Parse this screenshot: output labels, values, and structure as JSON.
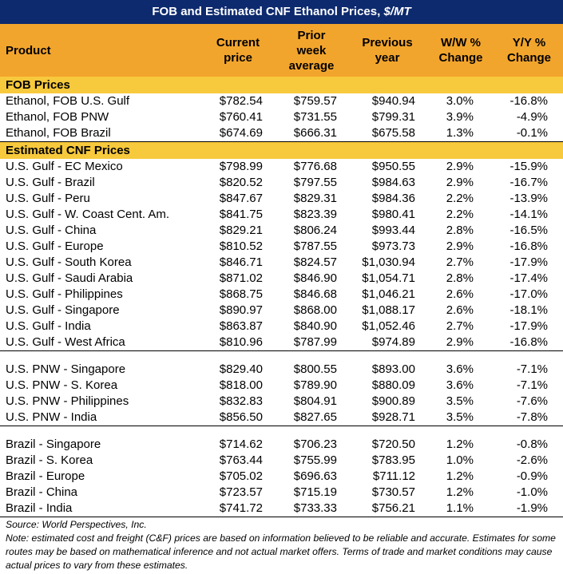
{
  "title": {
    "main": "FOB and Estimated CNF Ethanol Prices,",
    "unit": "$/MT"
  },
  "columns": [
    "Product",
    "Current price",
    "Prior week average",
    "Previous year",
    "W/W % Change",
    "Y/Y % Change"
  ],
  "sections": [
    {
      "label": "FOB Prices",
      "groups": [
        [
          [
            "Ethanol, FOB U.S. Gulf",
            "$782.54",
            "$759.57",
            "$940.94",
            "3.0%",
            "-16.8%"
          ],
          [
            "Ethanol, FOB PNW",
            "$760.41",
            "$731.55",
            "$799.31",
            "3.9%",
            "-4.9%"
          ],
          [
            "Ethanol, FOB Brazil",
            "$674.69",
            "$666.31",
            "$675.58",
            "1.3%",
            "-0.1%"
          ]
        ]
      ]
    },
    {
      "label": "Estimated CNF Prices",
      "groups": [
        [
          [
            "U.S. Gulf - EC Mexico",
            "$798.99",
            "$776.68",
            "$950.55",
            "2.9%",
            "-15.9%"
          ],
          [
            "U.S. Gulf - Brazil",
            "$820.52",
            "$797.55",
            "$984.63",
            "2.9%",
            "-16.7%"
          ],
          [
            "U.S. Gulf - Peru",
            "$847.67",
            "$829.31",
            "$984.36",
            "2.2%",
            "-13.9%"
          ],
          [
            "U.S. Gulf - W. Coast Cent. Am.",
            "$841.75",
            "$823.39",
            "$980.41",
            "2.2%",
            "-14.1%"
          ],
          [
            "U.S. Gulf - China",
            "$829.21",
            "$806.24",
            "$993.44",
            "2.8%",
            "-16.5%"
          ],
          [
            "U.S. Gulf - Europe",
            "$810.52",
            "$787.55",
            "$973.73",
            "2.9%",
            "-16.8%"
          ],
          [
            "U.S. Gulf - South Korea",
            "$846.71",
            "$824.57",
            "$1,030.94",
            "2.7%",
            "-17.9%"
          ],
          [
            "U.S. Gulf - Saudi Arabia",
            "$871.02",
            "$846.90",
            "$1,054.71",
            "2.8%",
            "-17.4%"
          ],
          [
            "U.S. Gulf - Philippines",
            "$868.75",
            "$846.68",
            "$1,046.21",
            "2.6%",
            "-17.0%"
          ],
          [
            "U.S. Gulf - Singapore",
            "$890.97",
            "$868.00",
            "$1,088.17",
            "2.6%",
            "-18.1%"
          ],
          [
            "U.S. Gulf - India",
            "$863.87",
            "$840.90",
            "$1,052.46",
            "2.7%",
            "-17.9%"
          ],
          [
            "U.S. Gulf - West Africa",
            "$810.96",
            "$787.99",
            "$974.89",
            "2.9%",
            "-16.8%"
          ]
        ],
        [
          [
            "U.S. PNW - Singapore",
            "$829.40",
            "$800.55",
            "$893.00",
            "3.6%",
            "-7.1%"
          ],
          [
            "U.S. PNW - S. Korea",
            "$818.00",
            "$789.90",
            "$880.09",
            "3.6%",
            "-7.1%"
          ],
          [
            "U.S. PNW - Philippines",
            "$832.83",
            "$804.91",
            "$900.89",
            "3.5%",
            "-7.6%"
          ],
          [
            "U.S. PNW - India",
            "$856.50",
            "$827.65",
            "$928.71",
            "3.5%",
            "-7.8%"
          ]
        ],
        [
          [
            "Brazil - Singapore",
            "$714.62",
            "$706.23",
            "$720.50",
            "1.2%",
            "-0.8%"
          ],
          [
            "Brazil - S. Korea",
            "$763.44",
            "$755.99",
            "$783.95",
            "1.0%",
            "-2.6%"
          ],
          [
            "Brazil - Europe",
            "$705.02",
            "$696.63",
            "$711.12",
            "1.2%",
            "-0.9%"
          ],
          [
            "Brazil - China",
            "$723.57",
            "$715.19",
            "$730.57",
            "1.2%",
            "-1.0%"
          ],
          [
            "Brazil - India",
            "$741.72",
            "$733.33",
            "$756.21",
            "1.1%",
            "-1.9%"
          ]
        ]
      ]
    }
  ],
  "footer": {
    "source": "Source: World Perspectives, Inc.",
    "note": "Note: estimated cost and freight (C&F) prices are based on information believed to be reliable and accurate. Estimates for some routes may be based on mathematical inference and not actual market offers. Terms of trade and market conditions may cause actual prices to vary from these estimates."
  }
}
